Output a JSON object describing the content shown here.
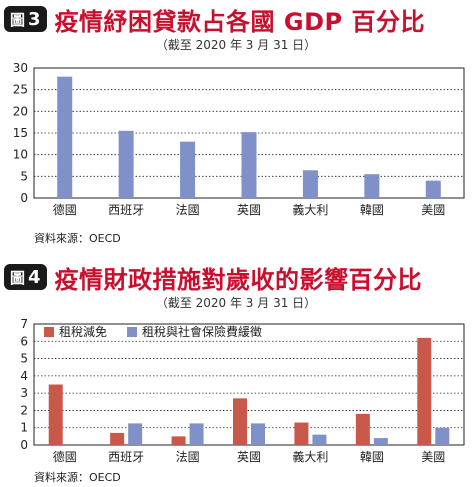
{
  "figures": [
    {
      "badge_prefix": "圖",
      "badge_number": "3",
      "title": "疫情紓困貸款占各國 GDP 百分比",
      "subtitle": "（截至 2020 年 3 月 31 日）",
      "source": "資料來源：OECD",
      "chart_data": {
        "type": "bar",
        "categories": [
          "德國",
          "西班牙",
          "法國",
          "英國",
          "義大利",
          "韓國",
          "美國"
        ],
        "series": [
          {
            "values": [
              28,
              15.5,
              13,
              15.2,
              6.4,
              5.5,
              4
            ]
          }
        ],
        "ylim": [
          0,
          30
        ],
        "yticks": [
          0,
          5,
          10,
          15,
          20,
          25,
          30
        ],
        "grid": true,
        "colors": [
          "#8090c8"
        ]
      }
    },
    {
      "badge_prefix": "圖",
      "badge_number": "4",
      "title": "疫情財政措施對歲收的影響百分比",
      "subtitle": "（截至 2020 年 3 月 31 日）",
      "source": "資料來源：OECD",
      "chart_data": {
        "type": "bar",
        "categories": [
          "德國",
          "西班牙",
          "法國",
          "英國",
          "義大利",
          "韓國",
          "美國"
        ],
        "series": [
          {
            "name": "租稅減免",
            "values": [
              3.5,
              0.7,
              0.5,
              2.7,
              1.3,
              1.8,
              6.2
            ]
          },
          {
            "name": "租稅與社會保險費緩徵",
            "values": [
              0,
              1.25,
              1.25,
              1.25,
              0.6,
              0.4,
              1.0
            ]
          }
        ],
        "ylim": [
          0,
          7
        ],
        "yticks": [
          0,
          1,
          2,
          3,
          4,
          5,
          6,
          7
        ],
        "grid": true,
        "legend": "top-left",
        "colors": [
          "#c8584a",
          "#8090c8"
        ]
      }
    }
  ]
}
